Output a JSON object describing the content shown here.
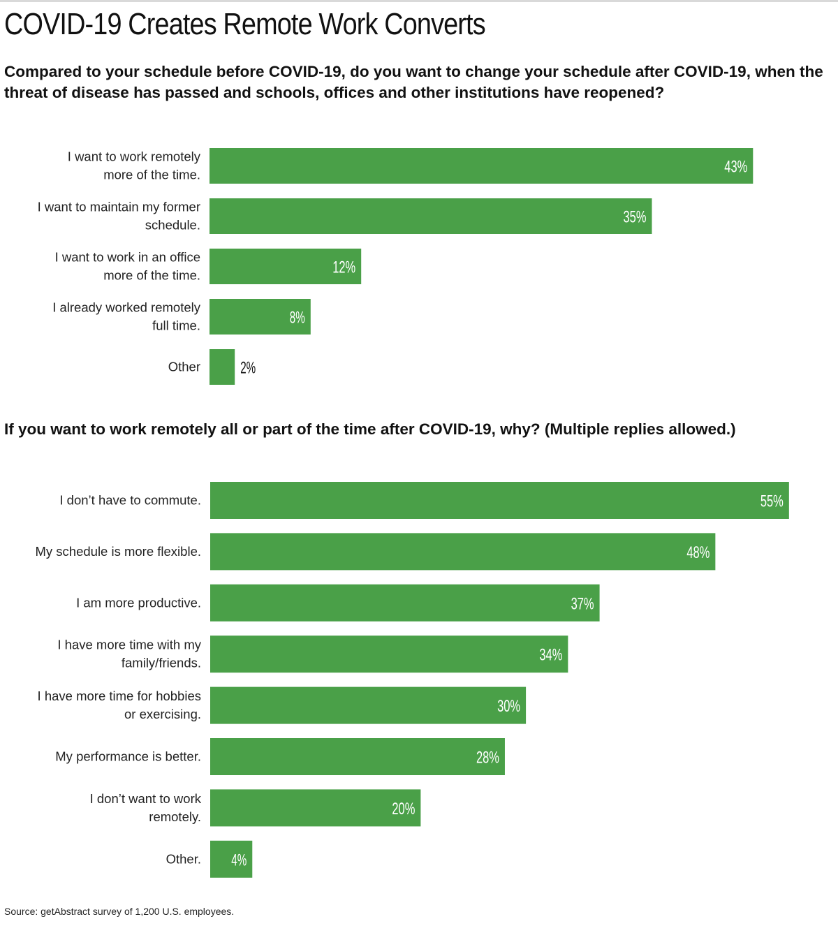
{
  "title": "COVID-19 Creates Remote Work Converts",
  "source": "Source: getAbstract survey of 1,200 U.S. employees.",
  "colors": {
    "bar": "#4aa048",
    "label_inside": "#ffffff",
    "label_outside": "#111111"
  },
  "chart_data": [
    {
      "type": "bar",
      "orientation": "horizontal",
      "title": "Compared to your schedule before COVID-19, do you want to change your schedule after COVID-19, when the threat of disease has passed and schools, offices and other institutions have reopened?",
      "categories": [
        [
          "I want to work remotely",
          "more of the time."
        ],
        [
          "I want to maintain my former",
          "schedule."
        ],
        [
          "I want to work in an office",
          "more of the time."
        ],
        [
          "I already worked remotely",
          "full time."
        ],
        [
          "Other"
        ]
      ],
      "values": [
        43,
        35,
        12,
        8,
        2
      ],
      "labels": [
        "43%",
        "35%",
        "12%",
        "8%",
        "2%"
      ],
      "unit": "%",
      "grid": false,
      "legend": "none"
    },
    {
      "type": "bar",
      "orientation": "horizontal",
      "title": "If you want to work remotely all or part of the time after COVID-19, why? (Multiple replies allowed.)",
      "categories": [
        [
          "I don’t have to commute."
        ],
        [
          "My schedule is more flexible."
        ],
        [
          "I am more productive."
        ],
        [
          "I have more time with my",
          "family/friends."
        ],
        [
          "I have more time for hobbies",
          "or exercising."
        ],
        [
          "My performance is better."
        ],
        [
          "I don’t want to work",
          "remotely."
        ],
        [
          "Other."
        ]
      ],
      "values": [
        55,
        48,
        37,
        34,
        30,
        28,
        20,
        4
      ],
      "labels": [
        "55%",
        "48%",
        "37%",
        "34%",
        "30%",
        "28%",
        "20%",
        "4%"
      ],
      "unit": "%",
      "grid": false,
      "legend": "none"
    }
  ]
}
